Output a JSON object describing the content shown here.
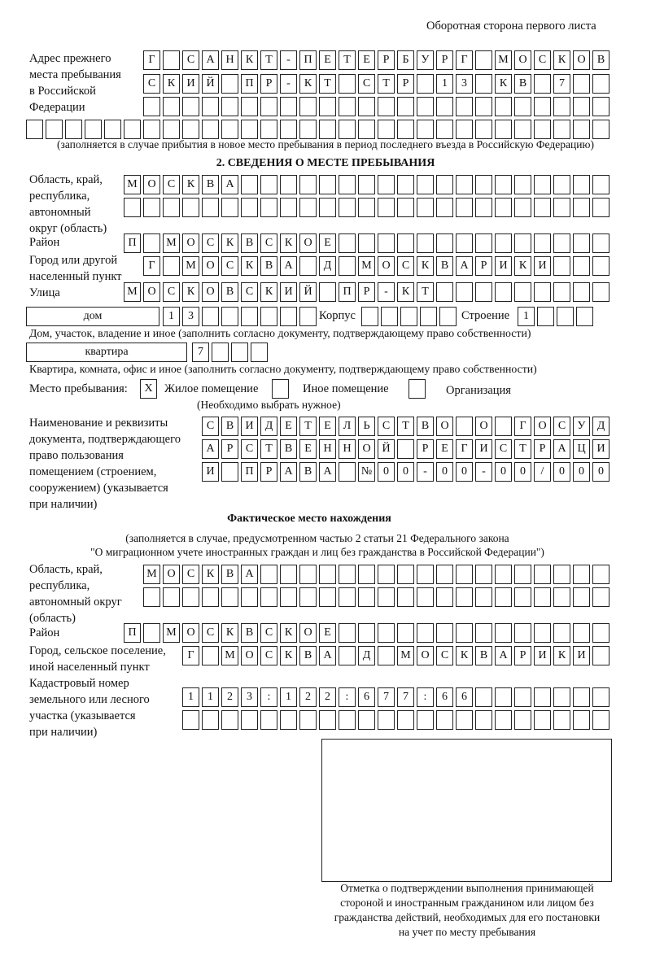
{
  "header": "Оборотная сторона первого листа",
  "prev_address": {
    "label": [
      "Адрес прежнего",
      "места пребывания",
      "в Российской",
      "Федерации"
    ],
    "rows": [
      [
        "Г",
        "",
        "С",
        "А",
        "Н",
        "К",
        "Т",
        "-",
        "П",
        "Е",
        "Т",
        "Е",
        "Р",
        "Б",
        "У",
        "Р",
        "Г",
        "",
        "М",
        "О",
        "С",
        "К",
        "О",
        "В"
      ],
      [
        "С",
        "К",
        "И",
        "Й",
        "",
        "П",
        "Р",
        "-",
        "К",
        "Т",
        "",
        "С",
        "Т",
        "Р",
        "",
        "1",
        "3",
        "",
        "К",
        "В",
        "",
        "7",
        "",
        ""
      ],
      [
        "",
        "",
        "",
        "",
        "",
        "",
        "",
        "",
        "",
        "",
        "",
        "",
        "",
        "",
        "",
        "",
        "",
        "",
        "",
        "",
        "",
        "",
        "",
        ""
      ],
      [
        "",
        "",
        "",
        "",
        "",
        "",
        "",
        "",
        "",
        "",
        "",
        "",
        "",
        "",
        "",
        "",
        "",
        "",
        "",
        "",
        "",
        "",
        "",
        "",
        "",
        "",
        "",
        "",
        "",
        ""
      ]
    ],
    "note": "(заполняется в случае прибытия в новое место пребывания в период последнего въезда в Российскую Федерацию)"
  },
  "section2": {
    "title": "2. СВЕДЕНИЯ О МЕСТЕ ПРЕБЫВАНИЯ",
    "region_label": [
      "Область, край,",
      "республика,",
      "автономный",
      "округ (область)"
    ],
    "region_rows": [
      [
        "М",
        "О",
        "С",
        "К",
        "В",
        "А",
        "",
        "",
        "",
        "",
        "",
        "",
        "",
        "",
        "",
        "",
        "",
        "",
        "",
        "",
        "",
        "",
        "",
        "",
        ""
      ],
      [
        "",
        "",
        "",
        "",
        "",
        "",
        "",
        "",
        "",
        "",
        "",
        "",
        "",
        "",
        "",
        "",
        "",
        "",
        "",
        "",
        "",
        "",
        "",
        "",
        ""
      ]
    ],
    "district_label": "Район",
    "district": [
      "П",
      "",
      "М",
      "О",
      "С",
      "К",
      "В",
      "С",
      "К",
      "О",
      "Е",
      "",
      "",
      "",
      "",
      "",
      "",
      "",
      "",
      "",
      "",
      "",
      "",
      "",
      ""
    ],
    "city_label": [
      "Город или другой",
      "населенный пункт"
    ],
    "city": [
      "Г",
      "",
      "М",
      "О",
      "С",
      "К",
      "В",
      "А",
      "",
      "Д",
      "",
      "М",
      "О",
      "С",
      "К",
      "В",
      "А",
      "Р",
      "И",
      "К",
      "И",
      "",
      "",
      ""
    ],
    "street_label": "Улица",
    "street": [
      "М",
      "О",
      "С",
      "К",
      "О",
      "В",
      "С",
      "К",
      "И",
      "Й",
      "",
      "П",
      "Р",
      "-",
      "К",
      "Т",
      "",
      "",
      "",
      "",
      "",
      "",
      "",
      "",
      ""
    ],
    "house_type": "дом",
    "house": [
      "1",
      "3",
      "",
      "",
      "",
      "",
      "",
      ""
    ],
    "korpus_label": "Корпус",
    "korpus": [
      "",
      "",
      "",
      "",
      ""
    ],
    "building_label": "Строение",
    "building": [
      "1",
      "",
      "",
      ""
    ],
    "house_note": "Дом, участок, владение и иное (заполнить согласно документу, подтверждающему право собственности)",
    "flat_type": "квартира",
    "flat": [
      "7",
      "",
      "",
      ""
    ],
    "flat_note": "Квартира, комната, офис и иное (заполнить согласно документу, подтверждающему право собственности)",
    "stay_label": "Место пребывания:",
    "stay_options": [
      {
        "label": "Жилое помещение",
        "mark": "X"
      },
      {
        "label": "Иное помещение",
        "mark": ""
      },
      {
        "label": "Организация",
        "mark": ""
      }
    ],
    "stay_note": "(Необходимо выбрать нужное)",
    "doc_label": [
      "Наименование и реквизиты",
      "документа, подтверждающего",
      "право пользования",
      "помещением (строением,",
      "сооружением) (указывается",
      "при наличии)"
    ],
    "doc_rows": [
      [
        "С",
        "В",
        "И",
        "Д",
        "Е",
        "Т",
        "Е",
        "Л",
        "Ь",
        "С",
        "Т",
        "В",
        "О",
        "",
        "О",
        "",
        "Г",
        "О",
        "С",
        "У",
        "Д"
      ],
      [
        "А",
        "Р",
        "С",
        "Т",
        "В",
        "Е",
        "Н",
        "Н",
        "О",
        "Й",
        "",
        "Р",
        "Е",
        "Г",
        "И",
        "С",
        "Т",
        "Р",
        "А",
        "Ц",
        "И"
      ],
      [
        "И",
        "",
        "П",
        "Р",
        "А",
        "В",
        "А",
        "",
        "№",
        "0",
        "0",
        "-",
        "0",
        "0",
        "-",
        "0",
        "0",
        "/",
        "0",
        "0",
        "0"
      ]
    ]
  },
  "actual": {
    "title": "Фактическое место нахождения",
    "note": [
      "(заполняется в случае, предусмотренном частью 2 статьи 21 Федерального закона",
      "\"О миграционном учете иностранных граждан и лиц без гражданства в Российской Федерации\")"
    ],
    "region_label": [
      "Область, край,",
      "республика,",
      "автономный округ",
      "(область)"
    ],
    "region_rows": [
      [
        "М",
        "О",
        "С",
        "К",
        "В",
        "А",
        "",
        "",
        "",
        "",
        "",
        "",
        "",
        "",
        "",
        "",
        "",
        "",
        "",
        "",
        "",
        "",
        "",
        ""
      ],
      [
        "",
        "",
        "",
        "",
        "",
        "",
        "",
        "",
        "",
        "",
        "",
        "",
        "",
        "",
        "",
        "",
        "",
        "",
        "",
        "",
        "",
        "",
        "",
        ""
      ]
    ],
    "district_label": "Район",
    "district": [
      "П",
      "",
      "М",
      "О",
      "С",
      "К",
      "В",
      "С",
      "К",
      "О",
      "Е",
      "",
      "",
      "",
      "",
      "",
      "",
      "",
      "",
      "",
      "",
      "",
      "",
      "",
      ""
    ],
    "city_label": [
      "Город, сельское поселение,",
      "иной населенный пункт"
    ],
    "city": [
      "Г",
      "",
      "М",
      "О",
      "С",
      "К",
      "В",
      "А",
      "",
      "Д",
      "",
      "М",
      "О",
      "С",
      "К",
      "В",
      "А",
      "Р",
      "И",
      "К",
      "И",
      ""
    ],
    "cadastre_label": [
      "Кадастровый номер",
      "земельного или лесного",
      "участка (указывается",
      "при наличии)"
    ],
    "cadastre_rows": [
      [
        "1",
        "1",
        "2",
        "3",
        ":",
        "1",
        "2",
        "2",
        ":",
        "6",
        "7",
        "7",
        ":",
        "6",
        "6",
        "",
        "",
        "",
        "",
        "",
        "",
        ""
      ],
      [
        "",
        "",
        "",
        "",
        "",
        "",
        "",
        "",
        "",
        "",
        "",
        "",
        "",
        "",
        "",
        "",
        "",
        "",
        "",
        "",
        "",
        ""
      ]
    ]
  },
  "stamp_caption": [
    "Отметка о подтверждении выполнения принимающей",
    "стороной и иностранным гражданином или лицом без",
    "гражданства действий, необходимых для его постановки",
    "на учет по месту пребывания"
  ]
}
